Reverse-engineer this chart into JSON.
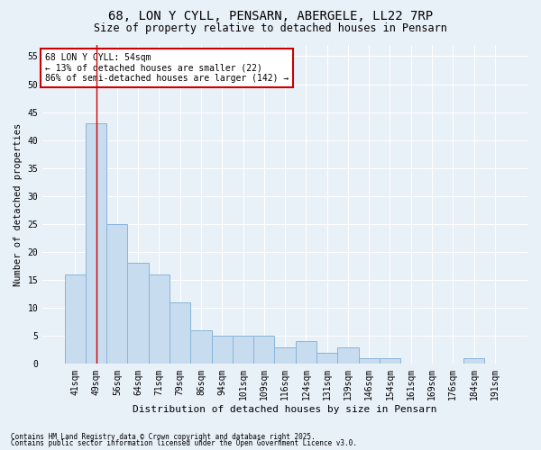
{
  "title": "68, LON Y CYLL, PENSARN, ABERGELE, LL22 7RP",
  "subtitle": "Size of property relative to detached houses in Pensarn",
  "xlabel": "Distribution of detached houses by size in Pensarn",
  "ylabel": "Number of detached properties",
  "categories": [
    "41sqm",
    "49sqm",
    "56sqm",
    "64sqm",
    "71sqm",
    "79sqm",
    "86sqm",
    "94sqm",
    "101sqm",
    "109sqm",
    "116sqm",
    "124sqm",
    "131sqm",
    "139sqm",
    "146sqm",
    "154sqm",
    "161sqm",
    "169sqm",
    "176sqm",
    "184sqm",
    "191sqm"
  ],
  "values": [
    16,
    43,
    25,
    18,
    16,
    11,
    6,
    5,
    5,
    5,
    3,
    4,
    2,
    3,
    1,
    1,
    0,
    0,
    0,
    1,
    0
  ],
  "bar_color": "#c8dcf0",
  "bar_edge_color": "#8ab4d8",
  "background_color": "#e8f0f8",
  "grid_color": "#ffffff",
  "vline_x": 1,
  "vline_color": "#cc0000",
  "annotation_title": "68 LON Y CYLL: 54sqm",
  "annotation_line1": "← 13% of detached houses are smaller (22)",
  "annotation_line2": "86% of semi-detached houses are larger (142) →",
  "annotation_box_color": "#cc0000",
  "footnote1": "Contains HM Land Registry data © Crown copyright and database right 2025.",
  "footnote2": "Contains public sector information licensed under the Open Government Licence v3.0.",
  "ylim": [
    0,
    57
  ],
  "yticks": [
    0,
    5,
    10,
    15,
    20,
    25,
    30,
    35,
    40,
    45,
    50,
    55
  ],
  "title_fontsize": 10,
  "subtitle_fontsize": 8.5,
  "xlabel_fontsize": 8,
  "ylabel_fontsize": 7.5,
  "tick_fontsize": 7,
  "annotation_fontsize": 7,
  "footnote_fontsize": 5.5
}
